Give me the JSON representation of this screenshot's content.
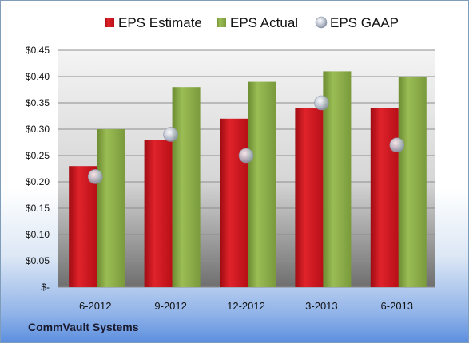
{
  "chart_data": {
    "type": "bar",
    "categories": [
      "6-2012",
      "9-2012",
      "12-2012",
      "3-2013",
      "6-2013"
    ],
    "series": [
      {
        "name": "EPS Estimate",
        "kind": "bar",
        "color": "#c8111b",
        "values": [
          0.23,
          0.28,
          0.32,
          0.34,
          0.34
        ]
      },
      {
        "name": "EPS Actual",
        "kind": "bar",
        "color": "#86a944",
        "values": [
          0.3,
          0.38,
          0.39,
          0.41,
          0.4
        ]
      },
      {
        "name": "EPS GAAP",
        "kind": "marker",
        "color": "#b9c3d3",
        "values": [
          0.21,
          0.29,
          0.25,
          0.35,
          0.27
        ]
      }
    ],
    "ylim": [
      0,
      0.45
    ],
    "yticks": [
      0,
      0.05,
      0.1,
      0.15,
      0.2,
      0.25,
      0.3,
      0.35,
      0.4,
      0.45
    ],
    "ytick_labels": [
      "$-",
      "$0.05",
      "$0.10",
      "$0.15",
      "$0.20",
      "$0.25",
      "$0.30",
      "$0.35",
      "$0.40",
      "$0.45"
    ],
    "grid": true,
    "legend": "top"
  },
  "footer": {
    "company": "CommVault Systems"
  }
}
